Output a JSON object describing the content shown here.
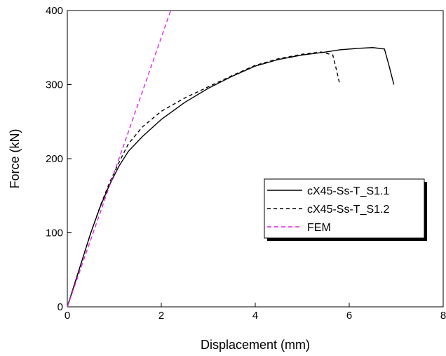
{
  "chart_data": {
    "type": "line",
    "title": "",
    "xlabel": "Displacement (mm)",
    "ylabel": "Force (kN)",
    "xlim": [
      0,
      8
    ],
    "ylim": [
      0,
      400
    ],
    "xticks": [
      0,
      2,
      4,
      6,
      8
    ],
    "yticks": [
      0,
      100,
      200,
      300,
      400
    ],
    "grid": false,
    "legend_position": "right",
    "series": [
      {
        "name": "cX45-Ss-T_S1.1",
        "style": "solid",
        "color": "#000000",
        "x": [
          0,
          0.15,
          0.3,
          0.5,
          0.7,
          0.9,
          1.1,
          1.3,
          1.6,
          2.0,
          2.5,
          3.0,
          3.5,
          4.0,
          4.5,
          5.0,
          5.5,
          5.8,
          6.2,
          6.5,
          6.75,
          6.85,
          6.95
        ],
        "y": [
          0,
          30,
          60,
          100,
          135,
          165,
          190,
          210,
          230,
          253,
          276,
          295,
          311,
          325,
          334,
          340,
          344,
          347,
          349,
          350,
          348,
          325,
          300
        ]
      },
      {
        "name": "cX45-Ss-T_S1.2",
        "style": "dashed",
        "color": "#000000",
        "x": [
          0,
          0.15,
          0.3,
          0.5,
          0.7,
          0.9,
          1.1,
          1.3,
          1.6,
          2.0,
          2.5,
          3.0,
          3.5,
          4.0,
          4.5,
          5.0,
          5.4,
          5.65,
          5.72,
          5.8
        ],
        "y": [
          0,
          30,
          60,
          100,
          136,
          168,
          195,
          220,
          243,
          264,
          282,
          297,
          312,
          326,
          335,
          341,
          344,
          340,
          322,
          300
        ]
      },
      {
        "name": "FEM",
        "style": "dashed",
        "color": "#e020e0",
        "x": [
          0,
          2.2
        ],
        "y": [
          0,
          400
        ]
      }
    ]
  }
}
